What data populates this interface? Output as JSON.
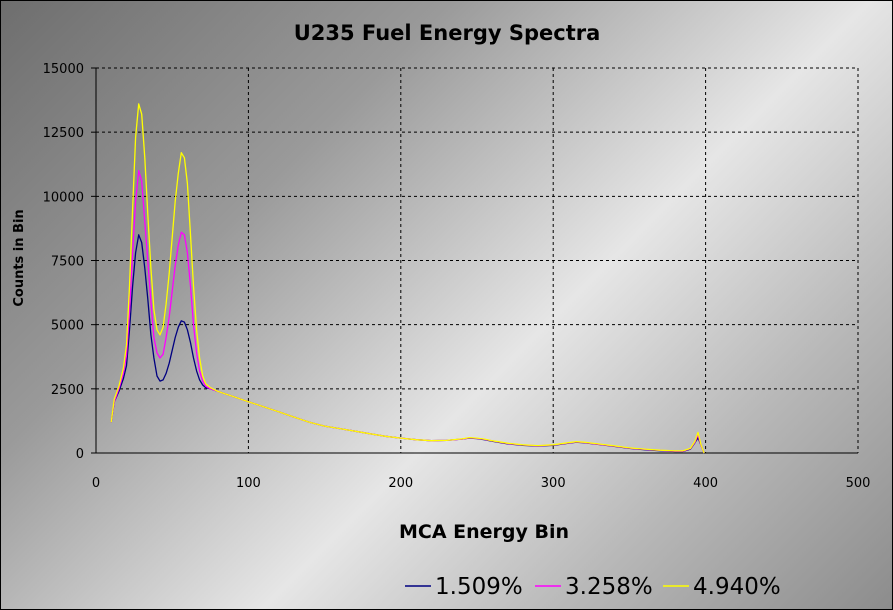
{
  "chart_data": {
    "type": "line",
    "title": "U235 Fuel Energy Spectra",
    "xlabel": "MCA Energy Bin",
    "ylabel": "Counts in Bin",
    "xlim": [
      0,
      500
    ],
    "ylim": [
      0,
      15000
    ],
    "xticks": [
      0,
      100,
      200,
      300,
      400,
      500
    ],
    "yticks": [
      0,
      2500,
      5000,
      7500,
      10000,
      12500,
      15000
    ],
    "xtick_labels": [
      "0",
      "100",
      "200",
      "300",
      "400",
      "500"
    ],
    "ytick_labels": [
      "0",
      "2500",
      "5000",
      "7500",
      "10000",
      "12500",
      "15000"
    ],
    "grid": true,
    "legend_position": "bottom-right",
    "series": [
      {
        "name": "1.509%",
        "color": "#000080",
        "x": [
          10,
          12,
          15,
          18,
          20,
          22,
          24,
          26,
          28,
          30,
          32,
          34,
          36,
          38,
          40,
          42,
          44,
          46,
          48,
          50,
          52,
          54,
          56,
          58,
          60,
          62,
          64,
          66,
          68,
          70,
          72,
          75,
          80,
          85,
          90,
          95,
          100,
          110,
          120,
          130,
          140,
          150,
          160,
          170,
          180,
          190,
          200,
          210,
          220,
          230,
          240,
          245,
          250,
          255,
          260,
          270,
          280,
          290,
          300,
          310,
          315,
          320,
          330,
          340,
          350,
          360,
          370,
          380,
          385,
          390,
          393,
          395,
          397,
          399
        ],
        "y": [
          1200,
          2000,
          2400,
          2900,
          3400,
          4800,
          6500,
          7800,
          8500,
          8200,
          7200,
          6000,
          4600,
          3700,
          3000,
          2800,
          2850,
          3100,
          3500,
          4000,
          4500,
          4900,
          5150,
          5100,
          4800,
          4300,
          3700,
          3200,
          2850,
          2650,
          2550,
          2500,
          2400,
          2300,
          2200,
          2100,
          2000,
          1800,
          1600,
          1400,
          1200,
          1050,
          950,
          850,
          750,
          650,
          580,
          520,
          480,
          490,
          540,
          580,
          560,
          520,
          460,
          360,
          300,
          270,
          300,
          380,
          420,
          400,
          330,
          260,
          180,
          130,
          90,
          60,
          60,
          150,
          400,
          600,
          300,
          0
        ]
      },
      {
        "name": "3.258%",
        "color": "#ff00ff",
        "x": [
          10,
          12,
          15,
          18,
          20,
          22,
          24,
          26,
          28,
          30,
          32,
          34,
          36,
          38,
          40,
          42,
          44,
          46,
          48,
          50,
          52,
          54,
          56,
          58,
          60,
          62,
          64,
          66,
          68,
          70,
          72,
          75,
          80,
          85,
          90,
          95,
          100,
          110,
          120,
          130,
          140,
          150,
          160,
          170,
          180,
          190,
          200,
          210,
          220,
          230,
          240,
          245,
          250,
          255,
          260,
          270,
          280,
          290,
          300,
          310,
          315,
          320,
          330,
          340,
          350,
          360,
          370,
          380,
          385,
          390,
          393,
          395,
          397,
          399
        ],
        "y": [
          1200,
          2000,
          2500,
          3100,
          3800,
          5500,
          7800,
          9800,
          11000,
          10600,
          9000,
          7500,
          5900,
          4500,
          3900,
          3700,
          3850,
          4500,
          5300,
          6300,
          7300,
          8100,
          8600,
          8500,
          7800,
          6500,
          5000,
          3900,
          3200,
          2800,
          2600,
          2500,
          2400,
          2300,
          2200,
          2100,
          2000,
          1800,
          1600,
          1400,
          1200,
          1050,
          950,
          850,
          750,
          650,
          580,
          520,
          480,
          490,
          540,
          590,
          570,
          530,
          470,
          370,
          310,
          280,
          310,
          390,
          430,
          410,
          340,
          270,
          190,
          140,
          100,
          70,
          70,
          170,
          420,
          700,
          300,
          0
        ]
      },
      {
        "name": "4.940%",
        "color": "#ffff00",
        "x": [
          10,
          12,
          15,
          18,
          20,
          22,
          24,
          26,
          28,
          30,
          32,
          34,
          36,
          38,
          40,
          42,
          44,
          46,
          48,
          50,
          52,
          54,
          56,
          58,
          60,
          62,
          64,
          66,
          68,
          70,
          72,
          75,
          80,
          85,
          90,
          95,
          100,
          110,
          120,
          130,
          140,
          150,
          160,
          170,
          180,
          190,
          200,
          210,
          220,
          230,
          240,
          245,
          250,
          255,
          260,
          270,
          280,
          290,
          300,
          310,
          315,
          320,
          330,
          340,
          350,
          360,
          370,
          380,
          385,
          390,
          393,
          395,
          397,
          399
        ],
        "y": [
          1200,
          2100,
          2600,
          3300,
          4200,
          6500,
          9500,
          12300,
          13600,
          13200,
          11500,
          9300,
          7200,
          5600,
          4800,
          4600,
          4900,
          5800,
          7000,
          8400,
          9800,
          10900,
          11700,
          11500,
          10500,
          8500,
          6500,
          4800,
          3700,
          3000,
          2700,
          2550,
          2400,
          2300,
          2200,
          2100,
          2000,
          1800,
          1600,
          1400,
          1200,
          1050,
          950,
          850,
          750,
          650,
          580,
          520,
          480,
          490,
          550,
          600,
          580,
          540,
          480,
          380,
          320,
          290,
          320,
          400,
          440,
          420,
          350,
          280,
          200,
          150,
          110,
          80,
          80,
          180,
          450,
          800,
          320,
          0
        ]
      }
    ]
  }
}
